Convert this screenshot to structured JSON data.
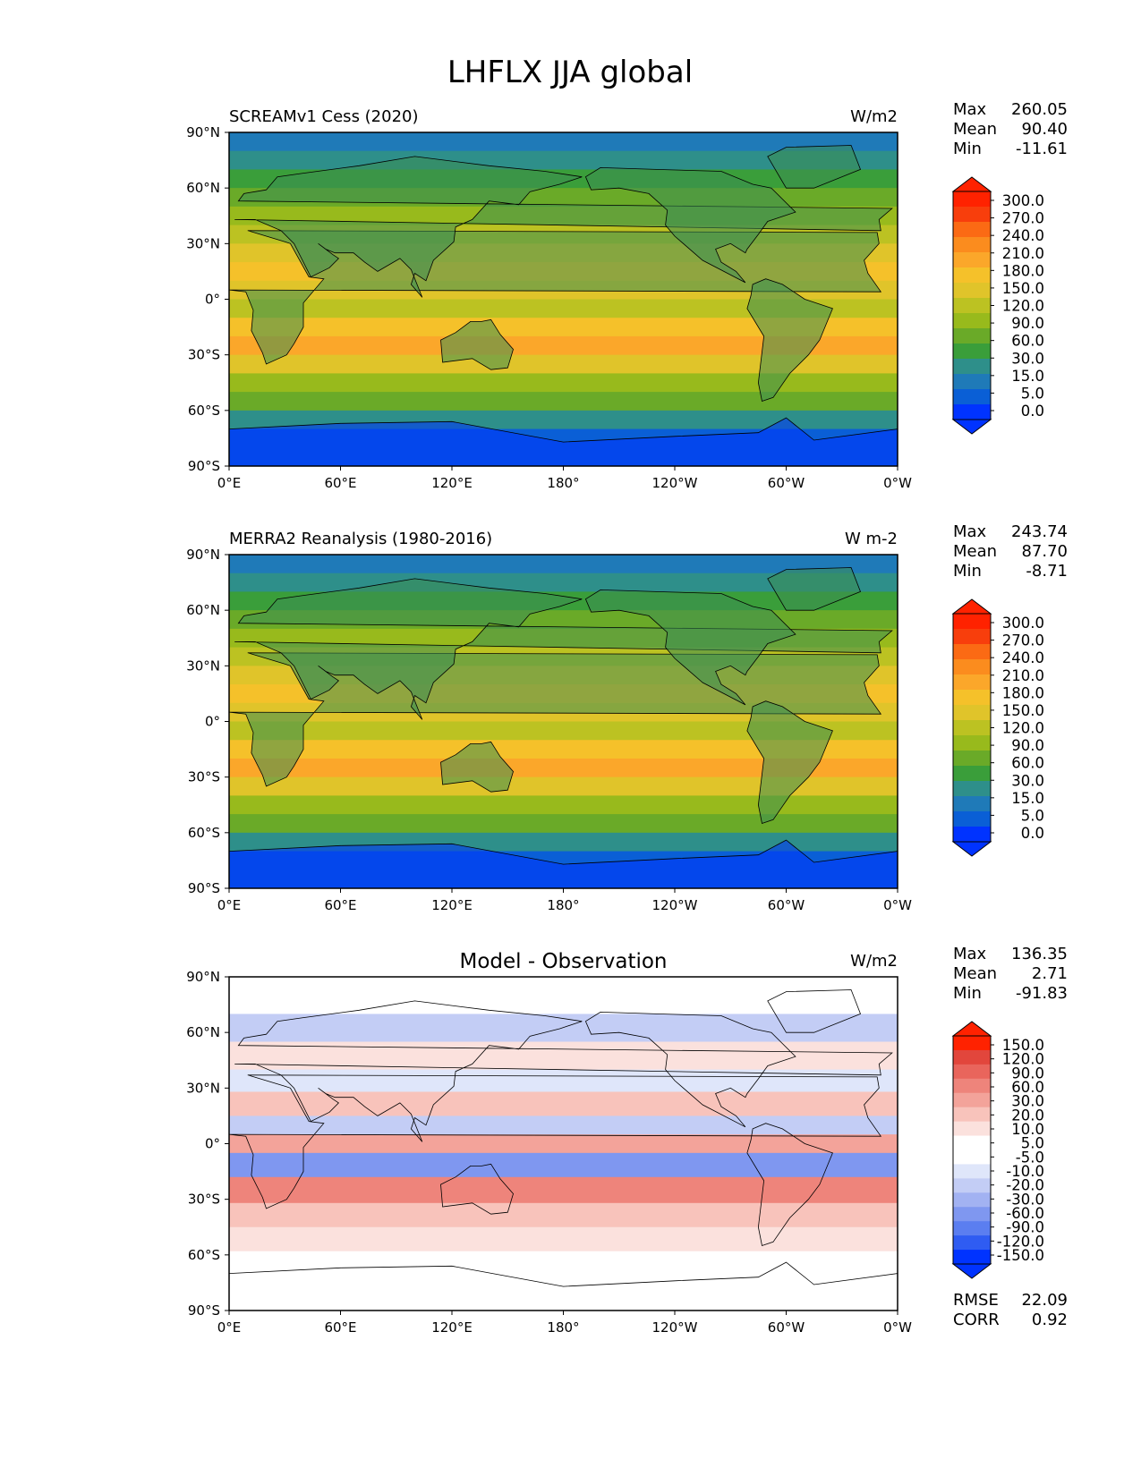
{
  "figure": {
    "title": "LHFLX JJA global"
  },
  "axis_labels": {
    "x": [
      "0°E",
      "60°E",
      "120°E",
      "180°",
      "120°W",
      "60°W",
      "0°W"
    ],
    "y": [
      "90°N",
      "60°N",
      "30°N",
      "0°",
      "30°S",
      "60°S",
      "90°S"
    ]
  },
  "colors": {
    "levels_main": [
      "#0033ff",
      "#0a5fd6",
      "#1f7ab8",
      "#2e8f8a",
      "#3a9e3a",
      "#6aaa28",
      "#98ba1c",
      "#bcc222",
      "#e0c42a",
      "#f5c12a",
      "#fba72a",
      "#fb8c1e",
      "#fb6a14",
      "#f83e0c",
      "#ff2200"
    ],
    "levels_diff": [
      "#0033ff",
      "#2f5cf2",
      "#5b7ef0",
      "#7f97f0",
      "#a2b2f2",
      "#c3cdf5",
      "#dfe6fa",
      "#ffffff",
      "#ffffff",
      "#fbe1dd",
      "#f8c3bb",
      "#f3a39a",
      "#ee847b",
      "#e9655c",
      "#e2463c",
      "#ff2200"
    ],
    "land": "#3c8e52",
    "coast": "#000000"
  },
  "chart_data": [
    {
      "type": "heatmap",
      "panel": "test",
      "title_left": "SCREAMv1 Cess (2020)",
      "title_center": "",
      "units": "W/m2",
      "stats": {
        "max_label": "Max",
        "max": "260.05",
        "mean_label": "Mean",
        "mean": "90.40",
        "min_label": "Min",
        "min": "-11.61"
      },
      "colorbar_ticks": [
        "300.0",
        "270.0",
        "240.0",
        "210.0",
        "180.0",
        "150.0",
        "120.0",
        "90.0",
        "60.0",
        "30.0",
        "15.0",
        "5.0",
        "0.0"
      ],
      "xlim": [
        0,
        360
      ],
      "ylim": [
        -90,
        90
      ]
    },
    {
      "type": "heatmap",
      "panel": "reference",
      "title_left": "MERRA2 Reanalysis (1980-2016)",
      "title_center": "",
      "units": "W m-2",
      "stats": {
        "max_label": "Max",
        "max": "243.74",
        "mean_label": "Mean",
        "mean": "87.70",
        "min_label": "Min",
        "min": "-8.71"
      },
      "colorbar_ticks": [
        "300.0",
        "270.0",
        "240.0",
        "210.0",
        "180.0",
        "150.0",
        "120.0",
        "90.0",
        "60.0",
        "30.0",
        "15.0",
        "5.0",
        "0.0"
      ],
      "xlim": [
        0,
        360
      ],
      "ylim": [
        -90,
        90
      ]
    },
    {
      "type": "heatmap",
      "panel": "diff",
      "title_left": "",
      "title_center": "Model - Observation",
      "units": "W/m2",
      "stats": {
        "max_label": "Max",
        "max": "136.35",
        "mean_label": "Mean",
        "mean": "2.71",
        "min_label": "Min",
        "min": "-91.83"
      },
      "colorbar_ticks": [
        "150.0",
        "120.0",
        "90.0",
        "60.0",
        "30.0",
        "20.0",
        "10.0",
        "5.0",
        "-5.0",
        "-10.0",
        "-20.0",
        "-30.0",
        "-60.0",
        "-90.0",
        "-120.0",
        "-150.0"
      ],
      "metrics": {
        "rmse_label": "RMSE",
        "rmse": "22.09",
        "corr_label": "CORR",
        "corr": "0.92"
      },
      "xlim": [
        0,
        360
      ],
      "ylim": [
        -90,
        90
      ]
    }
  ]
}
